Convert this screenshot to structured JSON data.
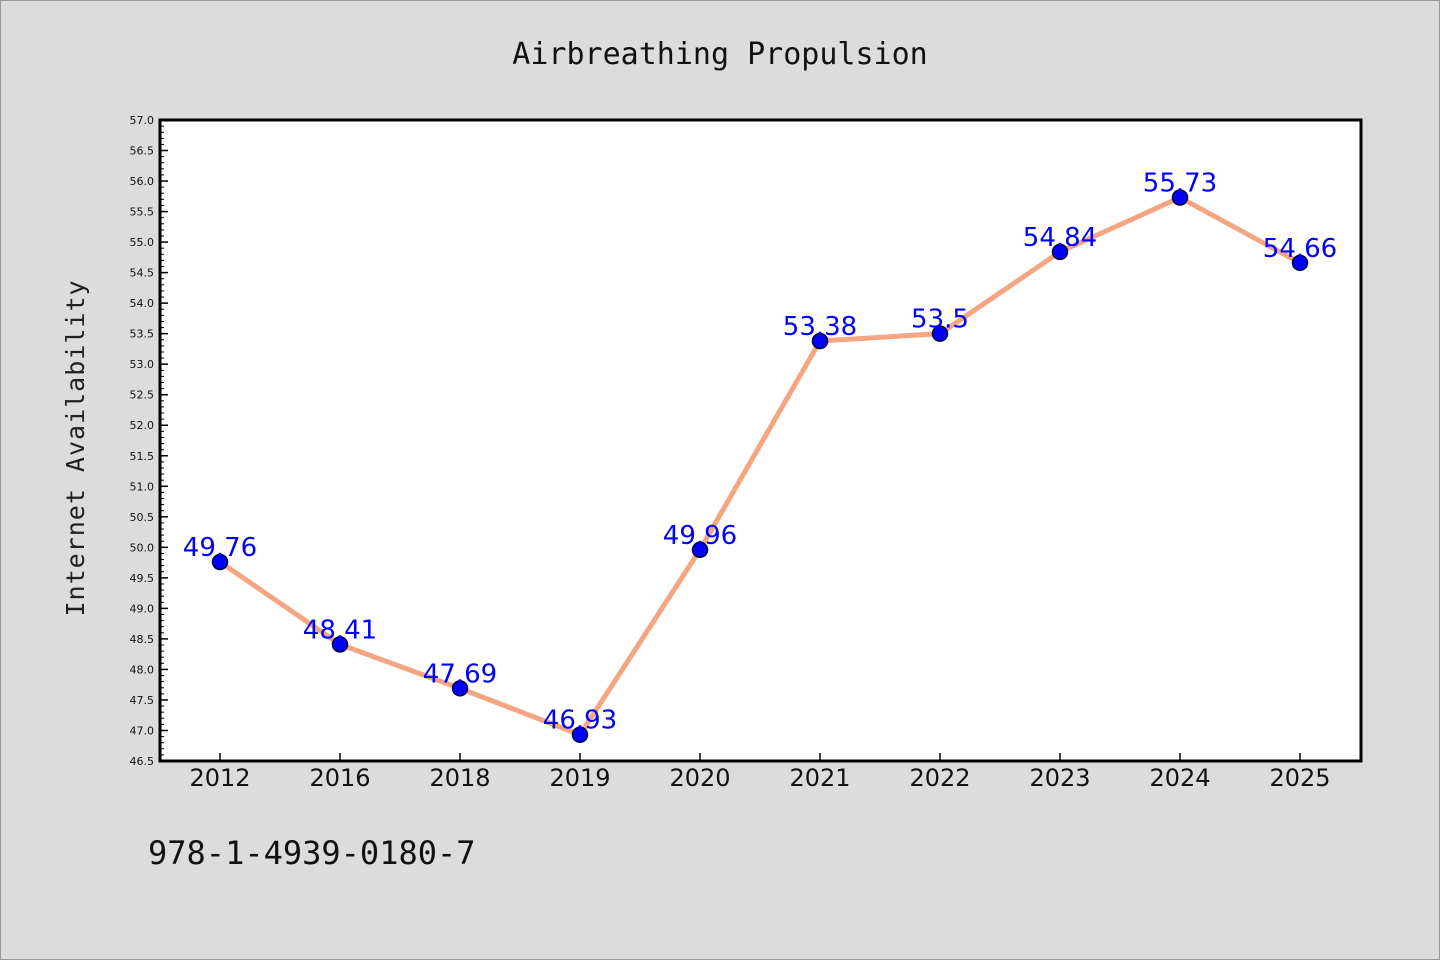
{
  "chart_data": {
    "type": "line",
    "title": "Airbreathing Propulsion",
    "xlabel": "",
    "ylabel": "Internet Availability",
    "categories": [
      "2012",
      "2016",
      "2018",
      "2019",
      "2020",
      "2021",
      "2022",
      "2023",
      "2024",
      "2025"
    ],
    "series": [
      {
        "values": [
          49.76,
          48.41,
          47.69,
          46.93,
          49.96,
          53.38,
          53.5,
          54.84,
          55.73,
          54.66
        ],
        "labels": [
          "49.76",
          "48.41",
          "47.69",
          "46.93",
          "49.96",
          "53.38",
          "53.5",
          "54.84",
          "55.73",
          "54.66"
        ],
        "line_color": "#f4a582",
        "marker_color": "#0000ff"
      }
    ],
    "ylim": [
      46.5,
      57.0
    ],
    "yticks": [
      "46.5",
      "47.0",
      "47.5",
      "48.0",
      "48.5",
      "49.0",
      "49.5",
      "50.0",
      "50.5",
      "51.0",
      "51.5",
      "52.0",
      "52.5",
      "53.0",
      "53.5",
      "54.0",
      "54.5",
      "55.0",
      "55.5",
      "56.0",
      "56.5",
      "57.0"
    ],
    "grid": false,
    "label_color": "#0000ff"
  },
  "annotation": {
    "isbn": "978-1-4939-0180-7"
  },
  "colors": {
    "background": "#dcdcdc",
    "plot_area": "#ffffff",
    "axes": "#000000"
  }
}
